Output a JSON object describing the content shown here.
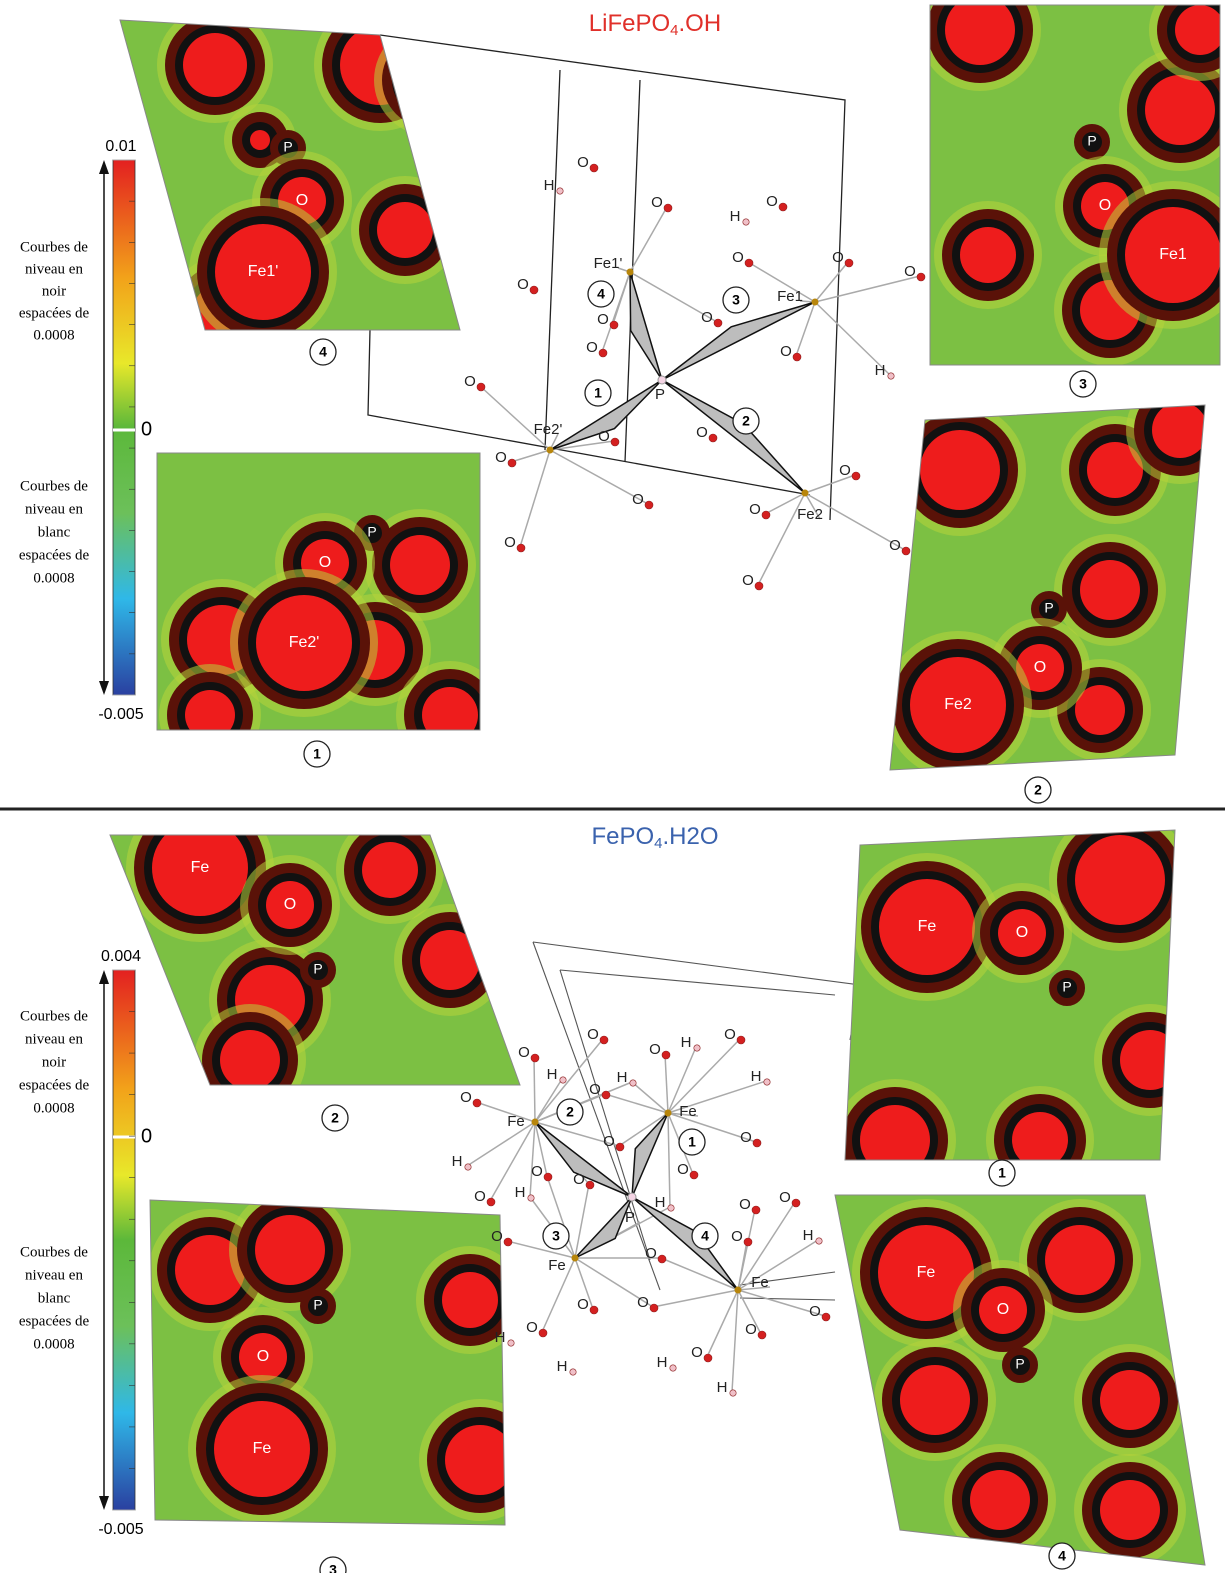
{
  "panels": [
    {
      "title": {
        "main": "LiFePO",
        "sub": "4",
        "tail": ".OH"
      },
      "colorbar": {
        "ticks": [
          0.01,
          0,
          -0.005
        ],
        "black_note": [
          "Courbes de",
          "niveau en",
          "noir",
          "espacées de",
          "0.0008"
        ],
        "white_note": [
          "Courbes de",
          "niveau en",
          "blanc",
          "espacées de",
          "0.0008"
        ]
      },
      "maps": [
        {
          "badge": "4",
          "atoms": [
            "P",
            "O",
            "Fe1'"
          ]
        },
        {
          "badge": "3",
          "atoms": [
            "P",
            "O",
            "Fe1"
          ]
        },
        {
          "badge": "1",
          "atoms": [
            "P",
            "O",
            "Fe2'"
          ]
        },
        {
          "badge": "2",
          "atoms": [
            "P",
            "O",
            "Fe2"
          ]
        }
      ],
      "structure": {
        "atoms": [
          "H",
          "O",
          "O",
          "H",
          "O",
          "O",
          "O",
          "Fe1'",
          "O",
          "Fe1",
          "O",
          "O",
          "O",
          "O",
          "O",
          "H",
          "P",
          "O",
          "O",
          "O",
          "Fe2'",
          "O",
          "O",
          "Fe2",
          "O",
          "O",
          "O",
          "O",
          "O"
        ],
        "badges": [
          "4",
          "3",
          "1",
          "2"
        ]
      }
    },
    {
      "title": {
        "main": "FePO",
        "sub": "4",
        "tail": ".H2O"
      },
      "colorbar": {
        "ticks": [
          0.004,
          0,
          -0.005
        ],
        "black_note": [
          "Courbes de",
          "niveau en",
          "noir",
          "espacées de",
          "0.0008"
        ],
        "white_note": [
          "Courbes de",
          "niveau en",
          "blanc",
          "espacées de",
          "0.0008"
        ]
      },
      "maps": [
        {
          "badge": "2",
          "atoms": [
            "Fe",
            "O",
            "P"
          ]
        },
        {
          "badge": "1",
          "atoms": [
            "Fe",
            "O",
            "P"
          ]
        },
        {
          "badge": "3",
          "atoms": [
            "P",
            "O",
            "Fe"
          ]
        },
        {
          "badge": "4",
          "atoms": [
            "Fe",
            "O",
            "P"
          ]
        }
      ],
      "structure": {
        "atoms": [
          "O",
          "H",
          "O",
          "H",
          "O",
          "O",
          "H",
          "O",
          "H",
          "O",
          "Fe",
          "Fe",
          "O",
          "O",
          "H",
          "O",
          "O",
          "O",
          "H",
          "O",
          "P",
          "H",
          "O",
          "O",
          "H",
          "O",
          "O",
          "O",
          "Fe",
          "Fe",
          "O",
          "O",
          "O",
          "O",
          "O",
          "H",
          "O",
          "H",
          "H",
          "H"
        ],
        "badges": [
          "2",
          "1",
          "3",
          "4"
        ]
      }
    }
  ]
}
